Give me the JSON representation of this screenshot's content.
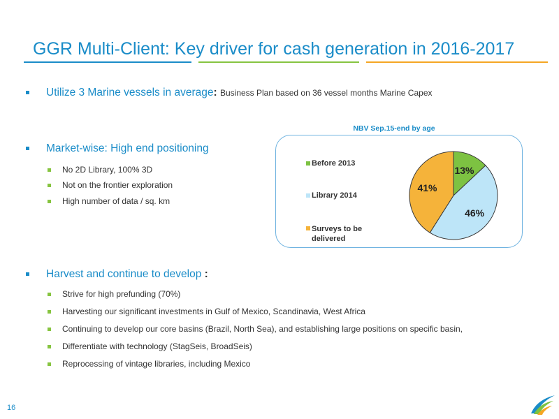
{
  "title": "GGR Multi-Client: Key driver for cash generation in 2016-2017",
  "bullets": {
    "b1": {
      "lead": "Utilize 3 Marine vessels in average",
      "colon": ":",
      "detail": "Business Plan based on 36 vessel months Marine Capex"
    },
    "b2": {
      "lead": "Market-wise: High end positioning",
      "subs": [
        "No 2D Library, 100% 3D",
        "Not on the frontier exploration",
        "High number of data / sq. km"
      ]
    },
    "b3": {
      "lead": "Harvest and continue to develop",
      "colon": " :",
      "subs": [
        "Strive for high prefunding (70%)",
        "Harvesting our significant investments in Gulf of Mexico, Scandinavia, West Africa",
        "Continuing to develop our core basins (Brazil, North Sea), and establishing large positions on specific basin,",
        "Differentiate with technology (StagSeis, BroadSeis)",
        "Reprocessing of vintage libraries, including Mexico"
      ]
    }
  },
  "chart_data": {
    "type": "pie",
    "title": "NBV Sep.15-end by age",
    "categories": [
      "Before 2013",
      "Library 2014",
      "Surveys to be delivered"
    ],
    "values": [
      13,
      46,
      41
    ],
    "labels": [
      "13%",
      "46%",
      "41%"
    ],
    "colors": [
      "#7dc242",
      "#bde5f8",
      "#f5b33a"
    ],
    "legend": "left"
  },
  "page_number": "16"
}
